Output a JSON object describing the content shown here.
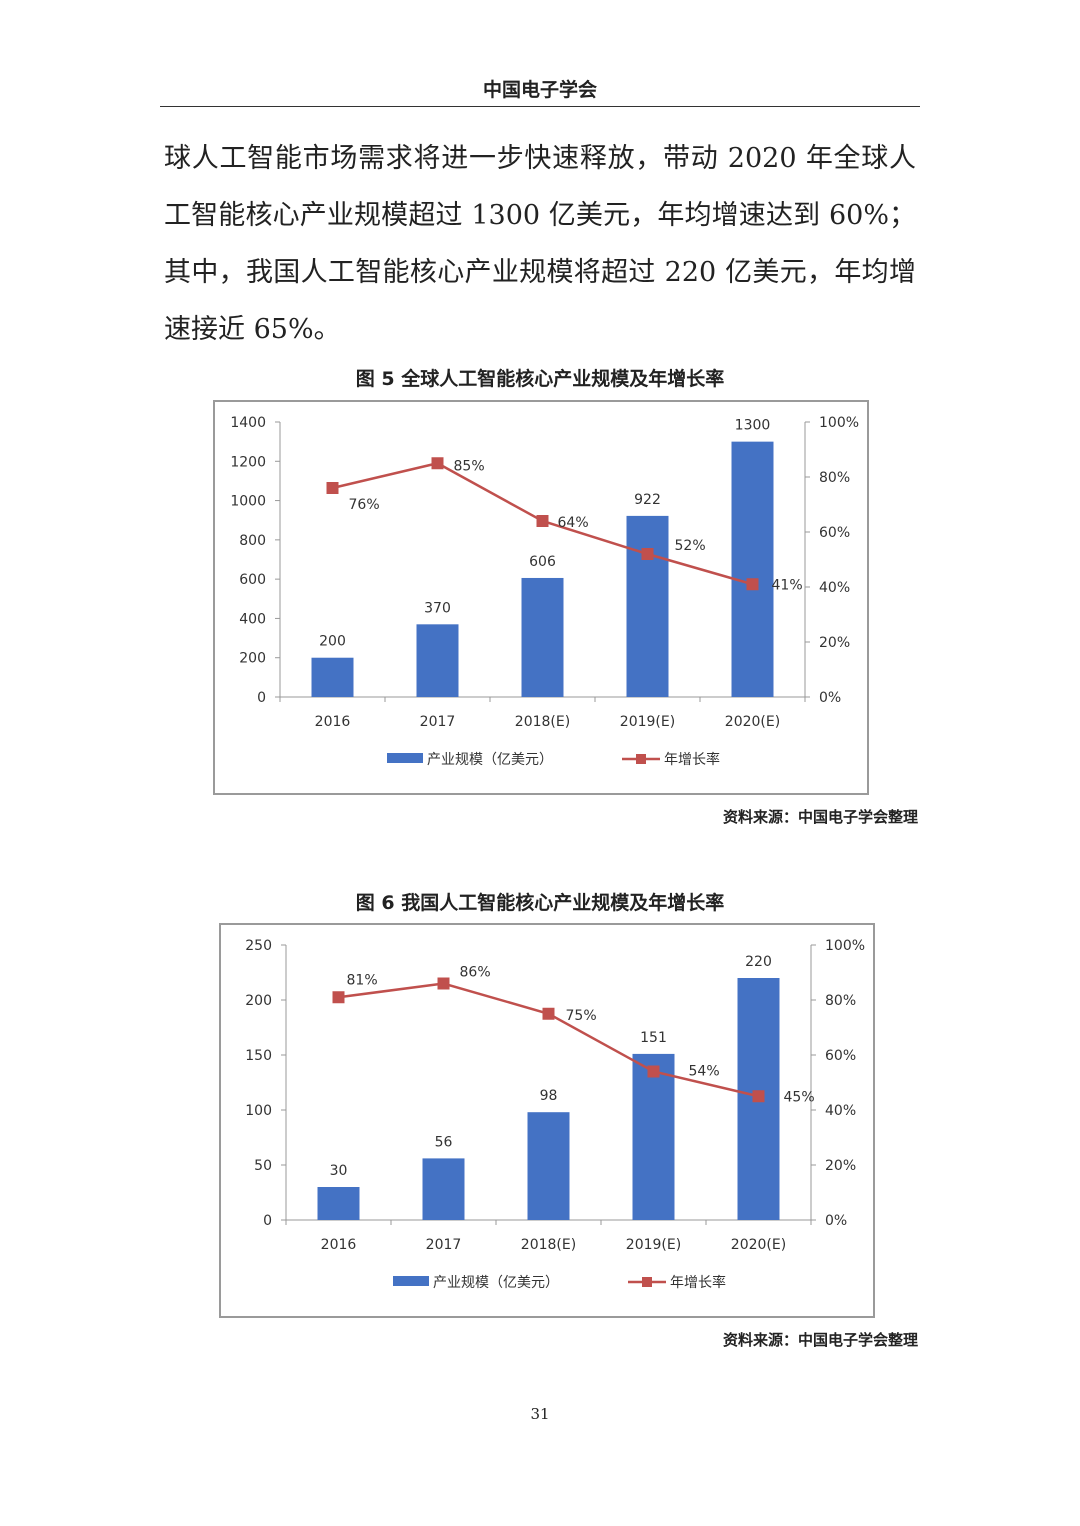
{
  "header": {
    "title": "中国电子学会"
  },
  "body": {
    "paragraph": "球人工智能市场需求将进一步快速释放，带动 2020 年全球人工智能核心产业规模超过 1300 亿美元，年均增速达到 60%；其中，我国人工智能核心产业规模将超过 220 亿美元，年均增速接近 65%。"
  },
  "figures": [
    {
      "caption": "图 5  全球人工智能核心产业规模及年增长率",
      "source": "资料来源：中国电子学会整理"
    },
    {
      "caption": "图 6  我国人工智能核心产业规模及年增长率",
      "source": "资料来源：中国电子学会整理"
    }
  ],
  "page_number": "31",
  "chart_data": [
    {
      "type": "bar",
      "categories": [
        "2016",
        "2017",
        "2018(E)",
        "2019(E)",
        "2020(E)"
      ],
      "series": [
        {
          "name": "产业规模（亿美元）",
          "type": "bar",
          "axis": "left",
          "values": [
            200,
            370,
            606,
            922,
            1300
          ],
          "labels": [
            "200",
            "370",
            "606",
            "922",
            "1300"
          ],
          "color": "#4472C4"
        },
        {
          "name": "年增长率",
          "type": "line",
          "axis": "right",
          "values": [
            76,
            85,
            64,
            52,
            41
          ],
          "labels": [
            "76%",
            "85%",
            "64%",
            "52%",
            "41%"
          ],
          "color": "#C0504D"
        }
      ],
      "y_left": {
        "min": 0,
        "max": 1400,
        "ticks": [
          "0",
          "200",
          "400",
          "600",
          "800",
          "1000",
          "1200",
          "1400"
        ]
      },
      "y_right": {
        "min": 0,
        "max": 100,
        "ticks": [
          "0%",
          "20%",
          "40%",
          "60%",
          "80%",
          "100%"
        ]
      },
      "legend_position": "bottom",
      "grid": false
    },
    {
      "type": "bar",
      "categories": [
        "2016",
        "2017",
        "2018(E)",
        "2019(E)",
        "2020(E)"
      ],
      "series": [
        {
          "name": "产业规模（亿美元）",
          "type": "bar",
          "axis": "left",
          "values": [
            30,
            56,
            98,
            151,
            220
          ],
          "labels": [
            "30",
            "56",
            "98",
            "151",
            "220"
          ],
          "color": "#4472C4"
        },
        {
          "name": "年增长率",
          "type": "line",
          "axis": "right",
          "values": [
            81,
            86,
            75,
            54,
            45
          ],
          "labels": [
            "81%",
            "86%",
            "75%",
            "54%",
            "45%"
          ],
          "color": "#C0504D"
        }
      ],
      "y_left": {
        "min": 0,
        "max": 250,
        "ticks": [
          "0",
          "50",
          "100",
          "150",
          "200",
          "250"
        ]
      },
      "y_right": {
        "min": 0,
        "max": 100,
        "ticks": [
          "0%",
          "20%",
          "40%",
          "60%",
          "80%",
          "100%"
        ]
      },
      "legend_position": "bottom",
      "grid": false
    }
  ]
}
